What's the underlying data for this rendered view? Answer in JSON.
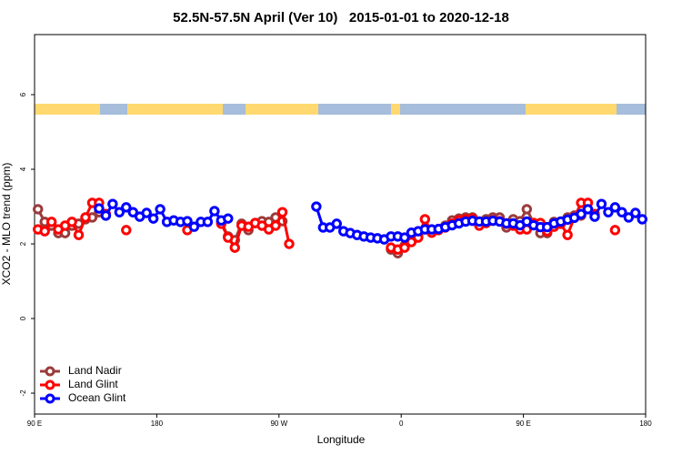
{
  "chart_data": {
    "type": "line",
    "title": "52.5N-57.5N April (Ver 10)   2015-01-01 to 2020-12-18",
    "xlabel": "Longitude",
    "ylabel": "XCO2 - MLO trend (ppm)",
    "xlim": [
      90,
      540
    ],
    "ylim": [
      -2.56,
      7.61
    ],
    "xticks": [
      {
        "value": 90,
        "label": "90 E"
      },
      180,
      {
        "value": 270,
        "label": "90 W"
      },
      {
        "value": 360,
        "label": "0"
      },
      {
        "value": 450,
        "label": "90 E"
      },
      {
        "value": 540,
        "label": "180"
      }
    ],
    "yticks": [
      -2,
      0,
      2,
      4,
      6
    ],
    "grid": false,
    "legend": "lower left",
    "x": [
      92.5,
      97.5,
      102.5,
      107.5,
      112.5,
      117.5,
      122.5,
      127.5,
      132.5,
      137.5,
      142.5,
      147.5,
      152.5,
      157.5,
      162.5,
      167.5,
      172.5,
      177.5,
      182.5,
      187.5,
      192.5,
      197.5,
      202.5,
      207.5,
      212.5,
      217.5,
      222.5,
      227.5,
      232.5,
      237.5,
      242.5,
      247.5,
      252.5,
      257.5,
      262.5,
      267.5,
      272.5,
      277.5,
      282.5,
      287.5,
      292.5,
      297.5,
      302.5,
      307.5,
      312.5,
      317.5,
      322.5,
      327.5,
      332.5,
      337.5,
      342.5,
      347.5,
      352.5,
      357.5,
      362.5,
      367.5,
      372.5,
      377.5,
      382.5,
      387.5,
      392.5,
      397.5,
      402.5,
      407.5,
      412.5,
      417.5,
      422.5,
      427.5,
      432.5,
      437.5,
      442.5,
      447.5,
      452.5,
      457.5,
      462.5,
      467.5,
      472.5,
      477.5,
      482.5,
      487.5,
      492.5,
      497.5,
      502.5,
      507.5,
      512.5,
      517.5,
      522.5,
      527.5,
      532.5,
      537.5
    ],
    "series": [
      {
        "name": "Land Nadir",
        "color": "#9b3b3b",
        "values": [
          2.93,
          2.59,
          2.49,
          2.29,
          2.29,
          2.49,
          2.54,
          2.66,
          2.71,
          2.85,
          2.76,
          null,
          null,
          null,
          null,
          null,
          null,
          null,
          null,
          null,
          null,
          null,
          null,
          null,
          null,
          null,
          null,
          2.59,
          2.2,
          2.1,
          2.54,
          2.37,
          2.56,
          2.61,
          2.59,
          2.71,
          2.61,
          null,
          null,
          null,
          null,
          null,
          null,
          null,
          null,
          null,
          null,
          null,
          null,
          null,
          null,
          null,
          1.85,
          1.75,
          1.95,
          2.2,
          2.25,
          2.4,
          2.34,
          2.39,
          2.49,
          2.63,
          2.68,
          2.71,
          2.71,
          2.56,
          2.66,
          2.71,
          2.71,
          2.44,
          2.66,
          2.61,
          2.93,
          2.56,
          2.29,
          2.29,
          2.59,
          2.59,
          2.71,
          2.76,
          2.76,
          null,
          null,
          null,
          null,
          null,
          null,
          null,
          null,
          null
        ]
      },
      {
        "name": "Land Glint",
        "color": "#ff0000",
        "values": [
          2.39,
          2.34,
          2.59,
          2.39,
          2.49,
          2.59,
          2.24,
          2.71,
          3.1,
          3.1,
          2.8,
          null,
          null,
          2.37,
          null,
          null,
          null,
          null,
          null,
          null,
          null,
          null,
          2.37,
          null,
          null,
          null,
          null,
          2.54,
          2.17,
          1.9,
          2.49,
          2.46,
          2.56,
          2.49,
          2.39,
          2.49,
          2.85,
          2.0,
          null,
          null,
          null,
          null,
          null,
          null,
          null,
          null,
          null,
          null,
          null,
          null,
          null,
          null,
          1.9,
          1.85,
          1.9,
          2.05,
          2.17,
          2.66,
          2.3,
          2.37,
          2.44,
          2.54,
          2.63,
          2.66,
          2.68,
          2.49,
          2.56,
          2.63,
          2.61,
          2.54,
          2.49,
          2.39,
          2.39,
          2.56,
          2.56,
          2.34,
          2.46,
          2.54,
          2.24,
          2.71,
          3.1,
          3.1,
          2.8,
          null,
          null,
          2.37,
          null,
          null,
          null,
          null
        ]
      },
      {
        "name": "Ocean Glint",
        "color": "#0000ff",
        "values": [
          null,
          null,
          null,
          null,
          null,
          null,
          null,
          null,
          null,
          2.95,
          2.76,
          3.07,
          2.85,
          2.98,
          2.85,
          2.73,
          2.83,
          2.68,
          2.93,
          2.59,
          2.63,
          2.59,
          2.61,
          2.46,
          2.59,
          2.59,
          2.88,
          2.63,
          2.68,
          null,
          null,
          null,
          null,
          null,
          null,
          null,
          null,
          null,
          null,
          null,
          null,
          3.0,
          2.44,
          2.44,
          2.54,
          2.34,
          2.29,
          2.24,
          2.2,
          2.17,
          2.15,
          2.12,
          2.2,
          2.2,
          2.17,
          2.3,
          2.34,
          2.39,
          2.39,
          2.4,
          2.45,
          2.5,
          2.55,
          2.6,
          2.62,
          2.6,
          2.6,
          2.62,
          2.6,
          2.55,
          2.55,
          2.5,
          2.6,
          2.5,
          2.45,
          2.45,
          2.55,
          2.6,
          2.65,
          2.7,
          2.8,
          2.93,
          2.73,
          3.07,
          2.85,
          2.98,
          2.85,
          2.71,
          2.83,
          2.66
        ]
      }
    ]
  }
}
